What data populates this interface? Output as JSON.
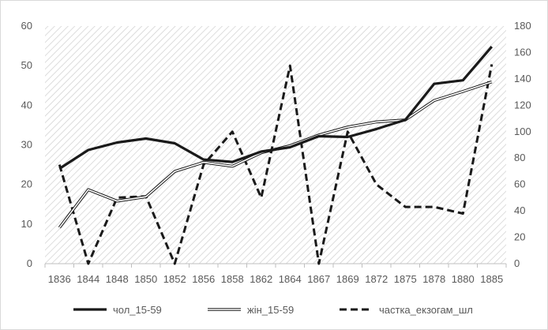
{
  "chart_data": {
    "type": "line",
    "categories": [
      "1836",
      "1844",
      "1848",
      "1850",
      "1852",
      "1856",
      "1858",
      "1862",
      "1864",
      "1867",
      "1869",
      "1872",
      "1875",
      "1878",
      "1880",
      "1885"
    ],
    "series": [
      {
        "name": "чол_15-59",
        "axis": "left",
        "style": "solid-thick",
        "color": "#1a1a1a",
        "values": [
          24,
          28.7,
          30.6,
          31.6,
          30.4,
          26.3,
          25.7,
          28.3,
          29.4,
          32.2,
          32,
          34,
          36.3,
          45.4,
          46.3,
          54.8
        ]
      },
      {
        "name": "жін_15-59",
        "axis": "left",
        "style": "double",
        "color": "#1a1a1a",
        "values": [
          9.1,
          18.7,
          15.8,
          16.9,
          23.3,
          25.6,
          24.6,
          28,
          29.8,
          32.5,
          34.5,
          35.8,
          36.3,
          41.2,
          43.5,
          45.9
        ]
      },
      {
        "name": "частка_екзогам_шл",
        "axis": "right",
        "style": "dashed",
        "color": "#1a1a1a",
        "values": [
          75,
          0,
          50,
          51,
          0,
          75,
          100,
          50,
          150,
          0,
          100,
          60,
          43,
          43,
          38,
          151
        ]
      }
    ],
    "y_left": {
      "min": 0,
      "max": 60,
      "ticks": [
        0,
        10,
        20,
        30,
        40,
        50,
        60
      ]
    },
    "y_right": {
      "min": 0,
      "max": 180,
      "ticks": [
        0,
        20,
        40,
        60,
        80,
        100,
        120,
        140,
        160,
        180
      ]
    },
    "grid": false,
    "background": "diagonal-hatch",
    "legend_position": "bottom"
  }
}
